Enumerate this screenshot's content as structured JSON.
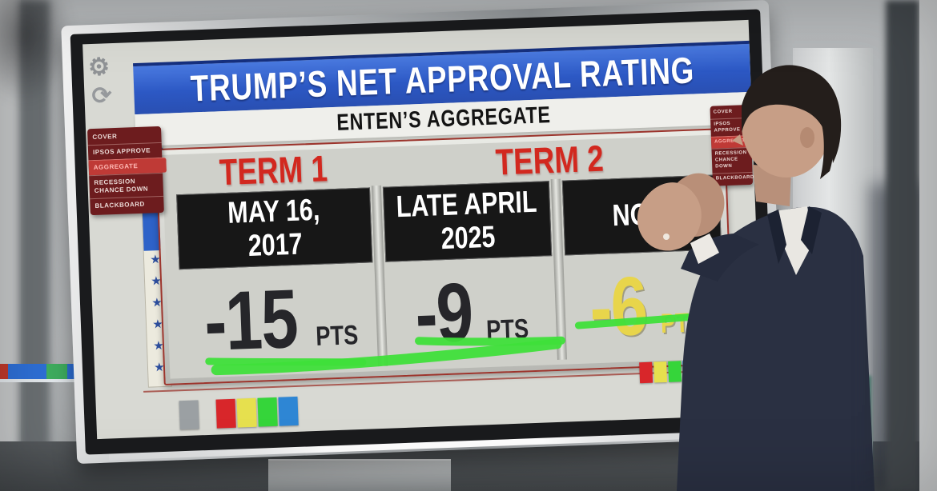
{
  "header": {
    "title": "TRUMP’S NET APPROVAL RATING",
    "subtitle": "ENTEN’S AGGREGATE"
  },
  "table": {
    "term_labels": [
      "TERM 1",
      "TERM 2"
    ],
    "columns": [
      {
        "period_l1": "MAY 16,",
        "period_l2": "2017",
        "value": "-15",
        "unit": "PTS"
      },
      {
        "period_l1": "LATE APRIL",
        "period_l2": "2025",
        "value": "-9",
        "unit": "PTS"
      },
      {
        "period_l1": "NOW",
        "period_l2": "",
        "value": "-6",
        "unit": "PTS"
      }
    ]
  },
  "side_menu": {
    "items": [
      "COVER",
      "IPSOS APPROVE",
      "AGGREGATE",
      "RECESSION CHANCE DOWN",
      "BLACKBOARD"
    ],
    "active_index": 2
  },
  "toolbar": {
    "icons": [
      "gear-icon",
      "refresh-icon"
    ],
    "gear_glyph": "⚙",
    "refresh_glyph": "⟳"
  },
  "marker_palette": {
    "left_order": [
      "gray",
      "red",
      "yellow",
      "green",
      "blue"
    ],
    "right_order": [
      "red",
      "yellow",
      "green",
      "blue",
      "gray"
    ]
  },
  "decor": {
    "star_glyph": "★",
    "left_star_count": 6,
    "right_star_count": 4
  },
  "colors": {
    "banner_blue": "#2c58c4",
    "banner_navy_edge": "#16307e",
    "term_red": "#d2281f",
    "header_box_black": "#171717",
    "value_dark": "#26262a",
    "value_yellow": "#e8d54b",
    "marker_green": "#3fdf3a",
    "menu_red": "#6d1c1e",
    "menu_active_red": "#bf3a36",
    "star_blue": "#2d4fa0",
    "palette": {
      "gray": "#9ba0a3",
      "red": "#d8262a",
      "yellow": "#e6e04e",
      "green": "#35d53a",
      "blue": "#2e86d4"
    }
  },
  "chart_data": {
    "type": "table",
    "title": "TRUMP'S NET APPROVAL RATING",
    "subtitle": "ENTEN'S AGGREGATE",
    "unit": "PTS",
    "groups": [
      {
        "term": "TERM 1",
        "points": [
          {
            "period": "MAY 16, 2017",
            "net_approval_pts": -15
          }
        ]
      },
      {
        "term": "TERM 2",
        "points": [
          {
            "period": "LATE APRIL 2025",
            "net_approval_pts": -9
          },
          {
            "period": "NOW",
            "net_approval_pts": -6
          }
        ]
      }
    ],
    "annotations": [
      "green marker underline beneath all three values",
      "NOW value -6 PTS emphasized in yellow"
    ]
  }
}
